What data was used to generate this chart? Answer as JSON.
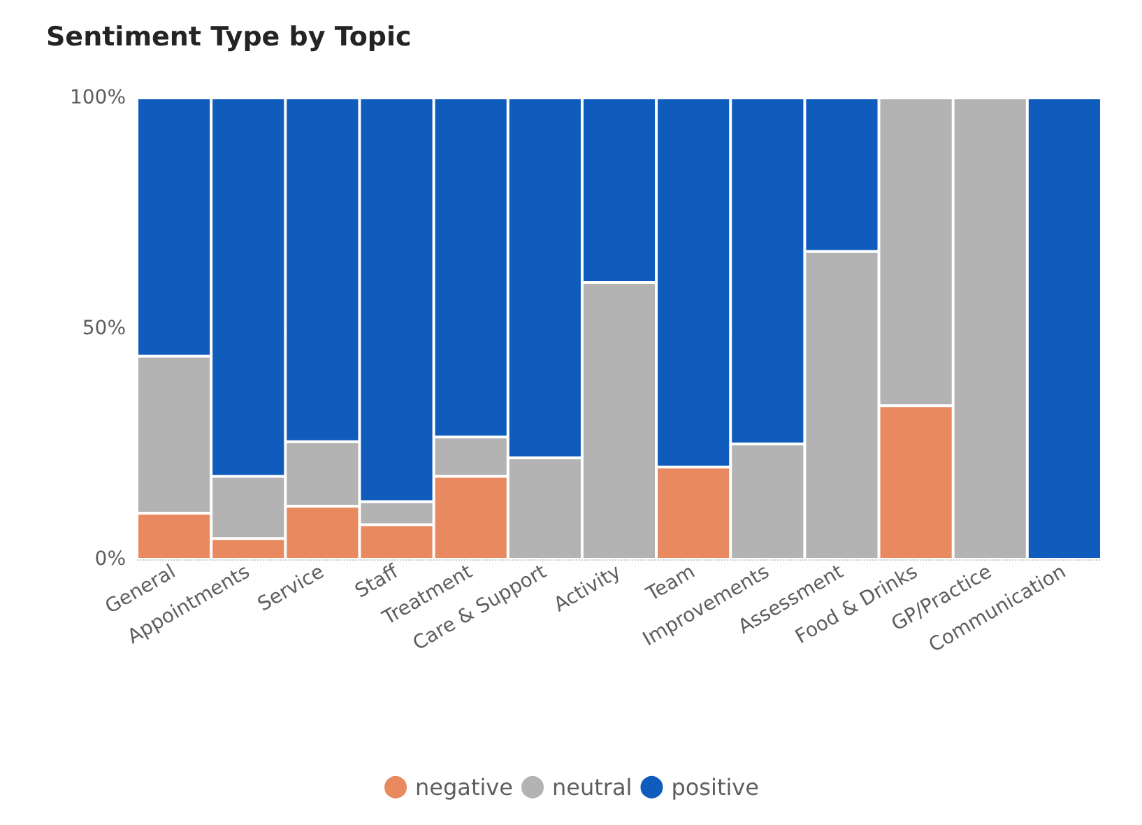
{
  "chart_data": {
    "type": "bar",
    "title": "Sentiment Type by Topic",
    "stacked": true,
    "categories": [
      "General",
      "Appointments",
      "Service",
      "Staff",
      "Treatment",
      "Care & Support",
      "Activity",
      "Team",
      "Improvements",
      "Assessment",
      "Food & Drinks",
      "GP/Practice",
      "Communication"
    ],
    "series": [
      {
        "name": "negative",
        "color": "#e8895f",
        "values": [
          10,
          4.5,
          11.5,
          7.5,
          18,
          0,
          0,
          20,
          0,
          0,
          33.3,
          0,
          0
        ]
      },
      {
        "name": "neutral",
        "color": "#b3b3b3",
        "values": [
          34,
          13.5,
          14,
          5,
          8.5,
          22,
          60,
          0,
          25,
          66.7,
          66.7,
          100,
          0
        ]
      },
      {
        "name": "positive",
        "color": "#0f5cbd",
        "values": [
          56,
          82,
          74.5,
          87.5,
          73.5,
          78,
          40,
          80,
          75,
          33.3,
          0,
          0,
          100
        ]
      }
    ],
    "ylim": [
      0,
      100
    ],
    "yticks": [
      {
        "value": 0,
        "label": "0%"
      },
      {
        "value": 50,
        "label": "50%"
      },
      {
        "value": 100,
        "label": "100%"
      }
    ],
    "grid": "y",
    "legend": "bottom"
  }
}
